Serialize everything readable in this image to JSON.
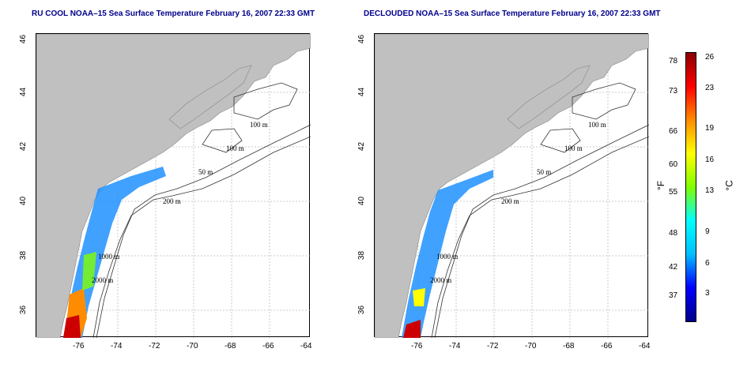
{
  "left_panel": {
    "title": "RU COOL NOAA–15 Sea Surface Temperature February 16, 2007 22:33 GMT"
  },
  "right_panel": {
    "title": "DECLOUDED NOAA–15 Sea Surface Temperature February 16, 2007 22:33 GMT"
  },
  "axes": {
    "x_ticks": [
      "-76",
      "-74",
      "-72",
      "-70",
      "-68",
      "-66",
      "-64"
    ],
    "y_ticks": [
      "46",
      "44",
      "42",
      "40",
      "38",
      "36"
    ]
  },
  "contour_labels": [
    "100 m",
    "100 m",
    "50 m",
    "200 m",
    "1000 m",
    "2000 m"
  ],
  "colorbar": {
    "f_label": "°F",
    "c_label": "°C",
    "f_ticks": [
      "78",
      "73",
      "66",
      "60",
      "55",
      "48",
      "42",
      "37"
    ],
    "c_ticks": [
      "26",
      "23",
      "19",
      "16",
      "13",
      "9",
      "6",
      "3"
    ],
    "colors": [
      "#00008b",
      "#0000ff",
      "#00bfff",
      "#00ffff",
      "#7fff00",
      "#ffff00",
      "#ff8c00",
      "#ff0000",
      "#8b0000"
    ]
  },
  "colors": {
    "land": "#c0c0c0",
    "title": "#00008b"
  }
}
